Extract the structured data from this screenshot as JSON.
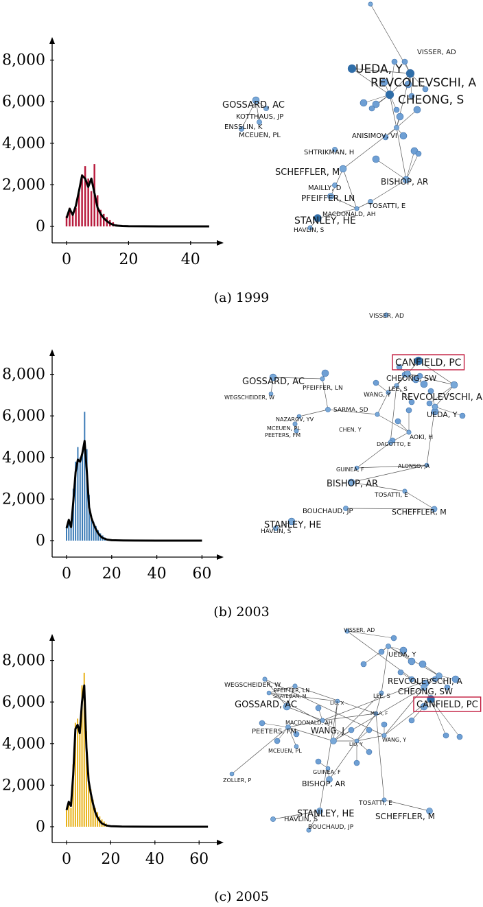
{
  "chart_data": [
    {
      "type": "bar",
      "caption": "(a)  1999",
      "x_ticks": [
        0,
        20,
        40
      ],
      "y_ticks": [
        "0",
        "2,000",
        "4,000",
        "6,000",
        "8,000"
      ],
      "xlim": [
        -2,
        46
      ],
      "ylim": [
        0,
        8800
      ],
      "bar_color": "#b81b3d",
      "bars": {
        "x": [
          0,
          1,
          2,
          3,
          4,
          5,
          6,
          7,
          8,
          9,
          10,
          11,
          12,
          13,
          14,
          15,
          16,
          17,
          18,
          19,
          20
        ],
        "values": [
          500,
          900,
          600,
          900,
          1600,
          2500,
          2900,
          2300,
          1700,
          3000,
          1500,
          800,
          600,
          450,
          300,
          200,
          100,
          60,
          30,
          10,
          5
        ]
      },
      "curve": {
        "x": [
          0,
          1,
          2,
          3,
          4,
          5,
          6,
          7,
          8,
          9,
          10,
          11,
          12,
          13,
          14,
          15,
          16,
          18,
          20,
          25,
          30,
          46
        ],
        "values": [
          400,
          850,
          550,
          1000,
          1700,
          2450,
          2300,
          1900,
          2300,
          1600,
          900,
          600,
          400,
          250,
          150,
          80,
          40,
          15,
          5,
          2,
          1,
          0
        ]
      },
      "network": {
        "nodes": [
          {
            "label": "VISSER, AD",
            "size": 7
          },
          {
            "label": "UEDA, Y",
            "size": 13
          },
          {
            "label": "REVCOLEVSCHI, A",
            "size": 13
          },
          {
            "label": "CHEONG, S",
            "size": 13
          },
          {
            "label": "GOSSARD, AC",
            "size": 11
          },
          {
            "label": "KOTTHAUS, JP",
            "size": 8
          },
          {
            "label": "ENSSLIN, K",
            "size": 8
          },
          {
            "label": "MCEUEN, PL",
            "size": 8
          },
          {
            "label": "ANISIMOV, VI",
            "size": 8
          },
          {
            "label": "SHTRIKMAN, H",
            "size": 8
          },
          {
            "label": "SCHEFFLER, M",
            "size": 11
          },
          {
            "label": "BISHOP, AR",
            "size": 11
          },
          {
            "label": "MAILLY, D",
            "size": 8
          },
          {
            "label": "PFEIFFER, LN",
            "size": 10
          },
          {
            "label": "TOSATTI, E",
            "size": 8
          },
          {
            "label": "MACDONALD, AH",
            "size": 7
          },
          {
            "label": "STANLEY, HE",
            "size": 12
          },
          {
            "label": "HAVLIN, S",
            "size": 7
          }
        ]
      }
    },
    {
      "type": "bar",
      "caption": "(b)  2003",
      "x_ticks": [
        0,
        20,
        40,
        60
      ],
      "y_ticks": [
        "0",
        "2,000",
        "4,000",
        "6,000",
        "8,000"
      ],
      "xlim": [
        -2,
        61
      ],
      "ylim": [
        0,
        8800
      ],
      "bar_color": "#3b7bb6",
      "bars": {
        "x": [
          0,
          1,
          2,
          3,
          4,
          5,
          6,
          7,
          8,
          9,
          10,
          11,
          12,
          13,
          14,
          15,
          16,
          17,
          18,
          19,
          20,
          21,
          22
        ],
        "values": [
          700,
          1000,
          700,
          2500,
          3800,
          4500,
          4000,
          4200,
          6200,
          4400,
          2200,
          1200,
          900,
          700,
          500,
          350,
          250,
          150,
          80,
          40,
          20,
          10,
          5
        ]
      },
      "curve": {
        "x": [
          0,
          1,
          2,
          3,
          4,
          5,
          6,
          7,
          8,
          9,
          10,
          11,
          12,
          13,
          14,
          15,
          16,
          18,
          20,
          25,
          30,
          40,
          60
        ],
        "values": [
          600,
          1000,
          650,
          1900,
          3300,
          3900,
          3800,
          4200,
          4800,
          3300,
          1600,
          1100,
          800,
          550,
          350,
          220,
          130,
          50,
          20,
          5,
          2,
          1,
          0
        ]
      },
      "network": {
        "nodes": [
          {
            "label": "VISSER, AD",
            "size": 7
          },
          {
            "label": "CANFIELD, PC",
            "size": 13,
            "highlight": true
          },
          {
            "label": "CHEONG, SW",
            "size": 10
          },
          {
            "label": "LEE, S",
            "size": 7
          },
          {
            "label": "WANG, Y",
            "size": 7
          },
          {
            "label": "REVCOLEVSCHI, A",
            "size": 11
          },
          {
            "label": "UEDA, Y",
            "size": 9
          },
          {
            "label": "GOSSARD, AC",
            "size": 11
          },
          {
            "label": "PFEIFFER, LN",
            "size": 7
          },
          {
            "label": "WEGSCHEIDER, W",
            "size": 6
          },
          {
            "label": "SARMA, SD",
            "size": 8
          },
          {
            "label": "NAZAROV, YV",
            "size": 6
          },
          {
            "label": "MCEUEN, PL",
            "size": 7
          },
          {
            "label": "PEETERS, FM",
            "size": 7
          },
          {
            "label": "CHEN, Y",
            "size": 7
          },
          {
            "label": "AOKI, H",
            "size": 7
          },
          {
            "label": "DAGOTTO, E",
            "size": 7
          },
          {
            "label": "GUINEA, F",
            "size": 6
          },
          {
            "label": "ALONSO, JA",
            "size": 6
          },
          {
            "label": "BISHOP, AR",
            "size": 11
          },
          {
            "label": "TOSATTI, E",
            "size": 7
          },
          {
            "label": "BOUCHAUD, JP",
            "size": 8
          },
          {
            "label": "SCHEFFLER, M",
            "size": 9
          },
          {
            "label": "STANLEY, HE",
            "size": 11
          },
          {
            "label": "HAVLIN, S",
            "size": 8
          }
        ]
      }
    },
    {
      "type": "bar",
      "caption": "(c)  2005",
      "x_ticks": [
        0,
        20,
        40,
        60
      ],
      "y_ticks": [
        "0",
        "2,000",
        "4,000",
        "6,000",
        "8,000"
      ],
      "xlim": [
        -2,
        64
      ],
      "ylim": [
        0,
        8800
      ],
      "bar_color": "#e8b21a",
      "bars": {
        "x": [
          0,
          1,
          2,
          3,
          4,
          5,
          6,
          7,
          8,
          9,
          10,
          11,
          12,
          13,
          14,
          15,
          16,
          17,
          18,
          19,
          20,
          21,
          22,
          23
        ],
        "values": [
          800,
          1200,
          900,
          3000,
          5000,
          5200,
          4800,
          6800,
          7400,
          4600,
          2600,
          1800,
          1300,
          900,
          700,
          500,
          350,
          250,
          150,
          80,
          40,
          20,
          10,
          5
        ]
      },
      "curve": {
        "x": [
          0,
          1,
          2,
          3,
          4,
          5,
          6,
          7,
          8,
          9,
          10,
          11,
          12,
          13,
          14,
          15,
          16,
          18,
          20,
          25,
          30,
          40,
          64
        ],
        "values": [
          800,
          1200,
          1000,
          2500,
          4700,
          4900,
          4500,
          6000,
          6800,
          3800,
          2200,
          1600,
          1100,
          700,
          450,
          280,
          160,
          60,
          25,
          8,
          3,
          1,
          0
        ]
      },
      "network": {
        "nodes": [
          {
            "label": "VISSER, AD",
            "size": 7
          },
          {
            "label": "UEDA, Y",
            "size": 8
          },
          {
            "label": "REVCOLEVSCHI, A",
            "size": 10
          },
          {
            "label": "CHEONG, SW",
            "size": 10
          },
          {
            "label": "CANFIELD, PC",
            "size": 12,
            "highlight": true
          },
          {
            "label": "WEGSCHEIDER, W",
            "size": 7
          },
          {
            "label": "PFEIFFER, LN",
            "size": 7
          },
          {
            "label": "SHAYEGAN, M",
            "size": 6
          },
          {
            "label": "GOSSARD, AC",
            "size": 11
          },
          {
            "label": "LIU, X",
            "size": 6
          },
          {
            "label": "LEE, S",
            "size": 7
          },
          {
            "label": "MILA, F",
            "size": 6
          },
          {
            "label": "MACDONALD, AH",
            "size": 7
          },
          {
            "label": "PEETERS, FM",
            "size": 8
          },
          {
            "label": "WANG, J",
            "size": 10
          },
          {
            "label": "LIU, Y",
            "size": 6
          },
          {
            "label": "WANG, Y",
            "size": 7
          },
          {
            "label": "MCEUEN, PL",
            "size": 6
          },
          {
            "label": "GUINEA, F",
            "size": 6
          },
          {
            "label": "ZOLLER, P",
            "size": 6
          },
          {
            "label": "BISHOP, AR",
            "size": 10
          },
          {
            "label": "TOSATTI, E",
            "size": 7
          },
          {
            "label": "STANLEY, HE",
            "size": 10
          },
          {
            "label": "SCHEFFLER, M",
            "size": 10
          },
          {
            "label": "HAVLIN, S",
            "size": 8
          },
          {
            "label": "BOUCHAUD, JP",
            "size": 7
          }
        ]
      }
    }
  ]
}
